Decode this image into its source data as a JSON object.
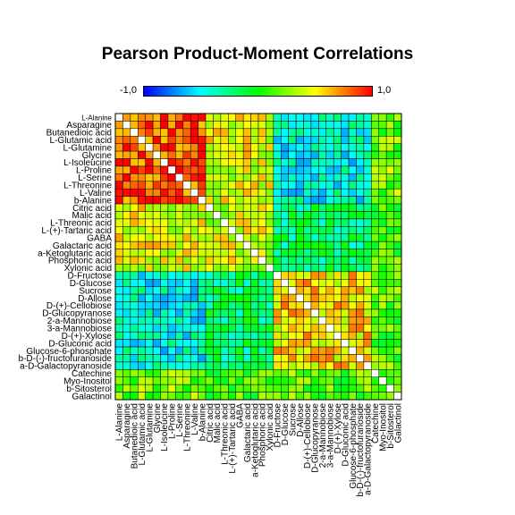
{
  "chart_data": {
    "type": "heatmap",
    "title": "Pearson Product-Moment Correlations",
    "colorbar": {
      "min_label": "-1,0",
      "max_label": "1,0",
      "colors": [
        "#0000ff",
        "#00ffff",
        "#00ff00",
        "#ffff00",
        "#ff0000"
      ]
    },
    "value_range": [
      -1,
      1
    ],
    "labels": [
      "L-Alanine",
      "Asparagine",
      "Butanedioic acid",
      "L-Glutamic acid",
      "L-Glutamine",
      "Glycine",
      "L-Isoleucine",
      "L-Proline",
      "L-Serine",
      "L-Threonine",
      "L-Valine",
      "b-Alanine",
      "Citric acid",
      "Malic acid",
      "L-Threonic acid",
      "L-(+)-Tartaric acid",
      "GABA",
      "Galactaric acid",
      "a-Ketoglutaric acid",
      "Phosphoric acid",
      "Xylonic acid",
      "D-Fructose",
      "D-Glucose",
      "Sucrose",
      "D-Allose",
      "D-(+)-Cellobiose",
      "D-Glucopyranose",
      "2-a-Mannobiose",
      "3-a-Mannobiose",
      "D-(+)-Xylose",
      "D-Gluconic acid",
      "Glucose-6-phosphate",
      "b-D-(-)-fructofuranoside",
      "a-D-Galactopyranoside",
      "Catechine",
      "Myo-Inositol",
      "b-Sitosterol",
      "Galactinol"
    ],
    "groups": {
      "amino_acids": [
        0,
        11
      ],
      "organic_acids": [
        12,
        20
      ],
      "sugars": [
        21,
        33
      ],
      "others": [
        34,
        37
      ]
    },
    "block_correlations": {
      "amino_acids__amino_acids": 0.85,
      "amino_acids__organic_acids": 0.45,
      "amino_acids__sugars": -0.45,
      "amino_acids__others": 0.2,
      "organic_acids__organic_acids": 0.4,
      "organic_acids__sugars": -0.2,
      "organic_acids__others": 0.1,
      "sugars__sugars": 0.55,
      "sugars__others": 0.15,
      "others__others": 0.2
    },
    "diagonal": 1.0
  }
}
